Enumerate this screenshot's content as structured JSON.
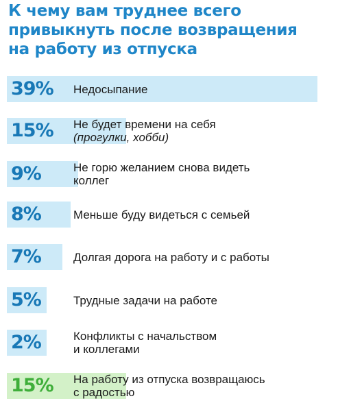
{
  "title_lines": [
    "К чему вам труднее всего",
    "привыкнуть после возвращения",
    "на работу из отпуска"
  ],
  "colors": {
    "title": "#1f86c8",
    "bar": "#cdeaf8",
    "pct": "#1878b6",
    "bar_highlight": "#d3f1c8",
    "pct_highlight": "#3fae3a"
  },
  "chart_data": {
    "type": "bar",
    "orientation": "horizontal",
    "title": "К чему вам труднее всего привыкнуть после возвращения на работу из отпуска",
    "unit": "%",
    "xlim": [
      0,
      39
    ],
    "categories": [
      {
        "label": "Недосыпание",
        "sub": ""
      },
      {
        "label": "Не будет времени на себя",
        "sub": "(прогулки, хобби)"
      },
      {
        "label": "Не горю желанием снова видеть",
        "sub": "коллег"
      },
      {
        "label": "Меньше буду видеться с семьей",
        "sub": ""
      },
      {
        "label": "Долгая дорога на работу и с работы",
        "sub": ""
      },
      {
        "label": "Трудные задачи на работе",
        "sub": ""
      },
      {
        "label": "Конфликты с начальством",
        "sub": "и коллегами"
      },
      {
        "label": "На работу из отпуска возвращаюсь",
        "sub": "с радостью"
      }
    ],
    "values": [
      39,
      15,
      9,
      8,
      7,
      5,
      2,
      15
    ],
    "value_labels": [
      "39%",
      "15%",
      "9%",
      "8%",
      "7%",
      "5%",
      "2%",
      "15%"
    ],
    "highlight": [
      false,
      false,
      false,
      false,
      false,
      false,
      false,
      true
    ]
  }
}
